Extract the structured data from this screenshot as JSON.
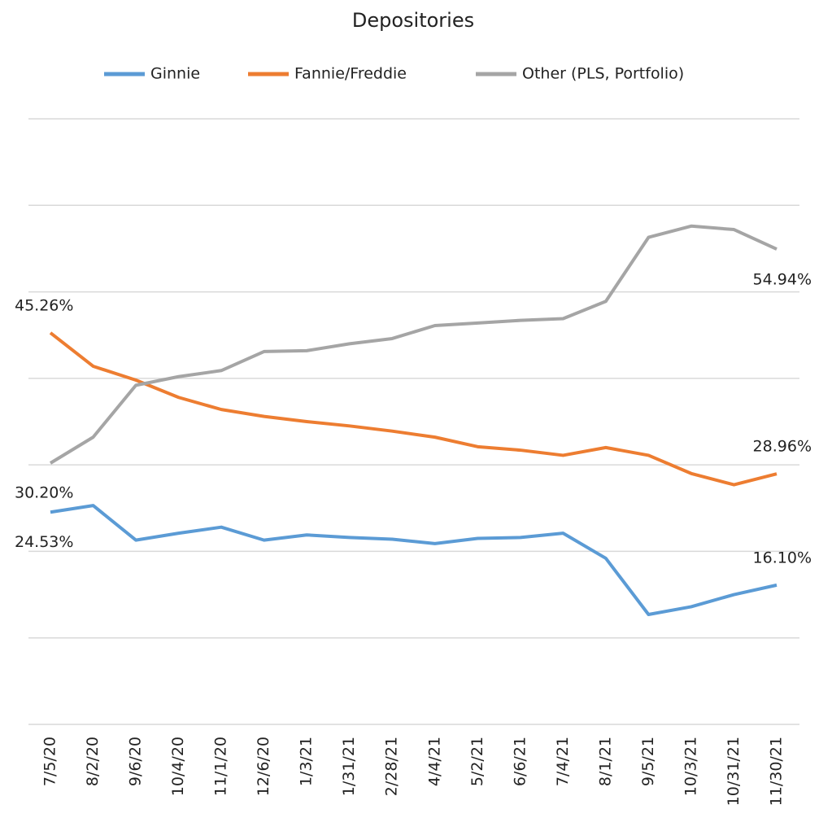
{
  "chart_data": {
    "type": "line",
    "title": "Depositories",
    "x": [
      "7/5/20",
      "8/2/20",
      "9/6/20",
      "10/4/20",
      "11/1/20",
      "12/6/20",
      "1/3/21",
      "1/31/21",
      "2/28/21",
      "4/4/21",
      "5/2/21",
      "6/6/21",
      "7/4/21",
      "8/1/21",
      "9/5/21",
      "10/3/21",
      "10/31/21",
      "11/30/21"
    ],
    "series": [
      {
        "name": "Ginnie",
        "color": "#5b9bd5",
        "values": [
          24.53,
          25.3,
          21.3,
          22.1,
          22.8,
          21.3,
          21.9,
          21.6,
          21.4,
          20.9,
          21.5,
          21.6,
          22.1,
          19.2,
          12.7,
          13.6,
          15.0,
          16.1
        ],
        "value_labels": [
          "24.53%",
          null,
          null,
          null,
          null,
          null,
          null,
          null,
          null,
          null,
          null,
          null,
          null,
          null,
          null,
          null,
          null,
          "16.10%"
        ]
      },
      {
        "name": "Fannie/Freddie",
        "color": "#ed7d31",
        "values": [
          45.26,
          41.4,
          39.8,
          37.8,
          36.4,
          35.6,
          35.0,
          34.5,
          33.9,
          33.2,
          32.1,
          31.7,
          31.1,
          32.0,
          31.1,
          29.0,
          27.7,
          28.96
        ],
        "value_labels": [
          "45.26%",
          null,
          null,
          null,
          null,
          null,
          null,
          null,
          null,
          null,
          null,
          null,
          null,
          null,
          null,
          null,
          null,
          "28.96%"
        ]
      },
      {
        "name": "Other (PLS, Portfolio)",
        "color": "#a5a5a5",
        "values": [
          30.2,
          33.2,
          39.2,
          40.2,
          40.9,
          43.1,
          43.2,
          44.0,
          44.6,
          46.1,
          46.4,
          46.7,
          46.9,
          48.9,
          56.3,
          57.6,
          57.2,
          54.94
        ],
        "value_labels": [
          "30.20%",
          null,
          null,
          null,
          null,
          null,
          null,
          null,
          null,
          null,
          null,
          null,
          null,
          null,
          null,
          null,
          null,
          "54.94%"
        ]
      }
    ],
    "ylim": [
      0,
      70
    ],
    "gridlines": [
      0,
      10,
      20,
      30,
      40,
      50,
      60,
      70
    ],
    "grid": true,
    "legend": "top"
  }
}
